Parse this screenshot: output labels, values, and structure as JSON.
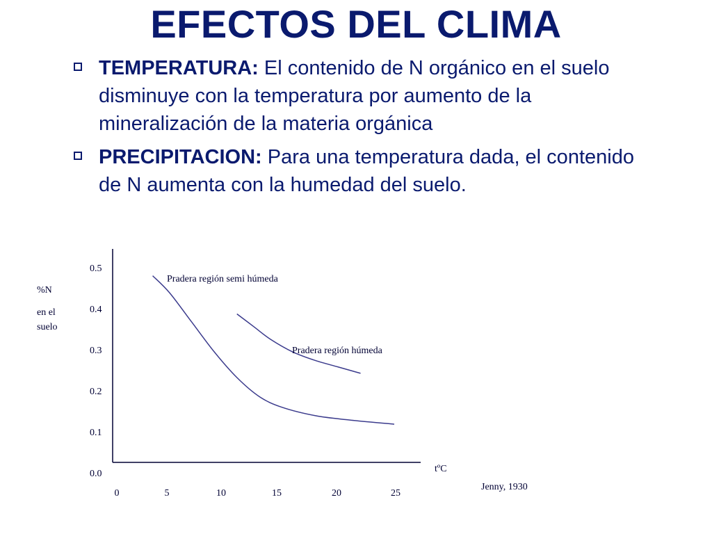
{
  "slide": {
    "title": "EFECTOS DEL CLIMA",
    "bullets": [
      {
        "term": "TEMPERATURA:",
        "text": " El contenido de N orgánico en el suelo disminuye con la temperatura por aumento de la mineralización de la materia orgánica"
      },
      {
        "term": "PRECIPITACION:",
        "text": " Para una temperatura dada, el contenido de N aumenta con la humedad del suelo."
      }
    ]
  },
  "chart_data": {
    "type": "line",
    "ylabel_line1": "%N",
    "ylabel_line2": "en el",
    "ylabel_line3": "suelo",
    "ylabel_glyph": "",
    "xlabel": "tºC",
    "source": "Jenny, 1930",
    "xlim": [
      0,
      26
    ],
    "ylim": [
      0.0,
      0.5
    ],
    "x_ticks": [
      "0",
      "5",
      "10",
      "15",
      "20",
      "25"
    ],
    "y_ticks": [
      "0.5",
      "0.4",
      "0.3",
      "0.2",
      "0.1",
      "0.0"
    ],
    "grid": false,
    "line_color": "#3a3a8c",
    "series": [
      {
        "name": "Pradera región semi húmeda",
        "x": [
          3.5,
          5,
          7,
          9,
          11,
          13,
          15,
          18,
          21,
          25
        ],
        "y": [
          0.44,
          0.4,
          0.33,
          0.26,
          0.2,
          0.155,
          0.13,
          0.11,
          0.1,
          0.09
        ]
      },
      {
        "name": "Pradera región húmeda",
        "x": [
          11,
          12.5,
          14,
          16,
          18,
          20,
          22
        ],
        "y": [
          0.35,
          0.32,
          0.29,
          0.26,
          0.24,
          0.225,
          0.21
        ]
      }
    ]
  }
}
